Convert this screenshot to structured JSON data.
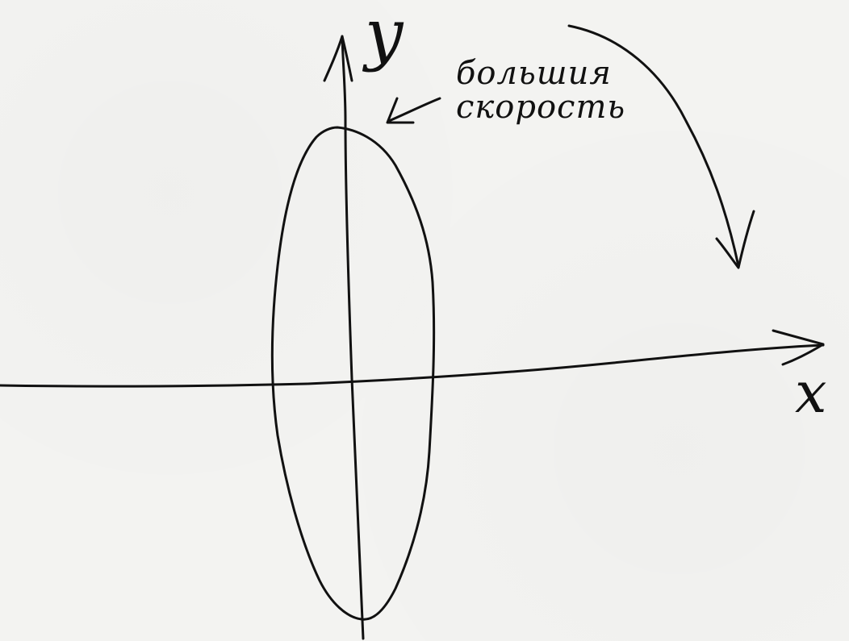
{
  "axes": {
    "y_label": "y",
    "x_label": "x"
  },
  "annotation": {
    "line1": "большия",
    "line2": "скорость"
  },
  "colors": {
    "ink": "#111111",
    "paper": "#f3f3f1"
  }
}
